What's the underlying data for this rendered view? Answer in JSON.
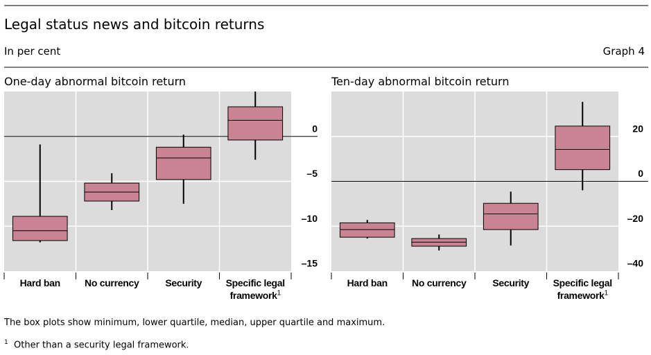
{
  "title": "Legal status news and bitcoin returns",
  "subtitle": "In per cent",
  "graph_label": "Graph 4",
  "chart_data": [
    {
      "type": "box",
      "title": "One-day abnormal bitcoin return",
      "categories": [
        "Hard ban",
        "No currency",
        "Security",
        "Specific legal framework"
      ],
      "category_notes": [
        null,
        null,
        null,
        "1"
      ],
      "color": "#c98393",
      "boxes": [
        {
          "min": -11.8,
          "q1": -11.6,
          "median": -10.5,
          "q3": -8.9,
          "max": -0.9
        },
        {
          "min": -8.2,
          "q1": -7.2,
          "median": -6.2,
          "q3": -5.2,
          "max": -4.1
        },
        {
          "min": -7.5,
          "q1": -4.8,
          "median": -2.4,
          "q3": -1.2,
          "max": 0.2
        },
        {
          "min": -2.6,
          "q1": -0.4,
          "median": 1.8,
          "q3": 3.3,
          "max": 5.0
        }
      ],
      "ylim": [
        -15,
        5
      ],
      "yticks": [
        {
          "value": -15,
          "label": "–15"
        },
        {
          "value": -10,
          "label": "–10"
        },
        {
          "value": -5,
          "label": "–5"
        },
        0
      ],
      "grid": true
    },
    {
      "type": "box",
      "title": "Ten-day abnormal bitcoin return",
      "categories": [
        "Hard ban",
        "No currency",
        "Security",
        "Specific legal framework"
      ],
      "category_notes": [
        null,
        null,
        null,
        "1"
      ],
      "color": "#c98393",
      "boxes": [
        {
          "min": -25.5,
          "q1": -24.9,
          "median": -21.5,
          "q3": -18.5,
          "max": -17.2
        },
        {
          "min": -30.8,
          "q1": -28.9,
          "median": -27.1,
          "q3": -25.5,
          "max": -23.7
        },
        {
          "min": -28.6,
          "q1": -21.5,
          "median": -14.5,
          "q3": -9.8,
          "max": -4.6
        },
        {
          "min": -4.0,
          "q1": 5.2,
          "median": 14.2,
          "q3": 24.6,
          "max": 35.4
        }
      ],
      "ylim": [
        -40,
        40
      ],
      "yticks": [
        {
          "value": -40,
          "label": "–40"
        },
        {
          "value": -20,
          "label": "–20"
        },
        0,
        20
      ],
      "grid": true
    }
  ],
  "notes": [
    "The box plots show minimum, lower quartile, median, upper quartile and maximum."
  ],
  "footnotes": [
    {
      "marker": "1",
      "text": "Other than a security legal framework."
    }
  ]
}
